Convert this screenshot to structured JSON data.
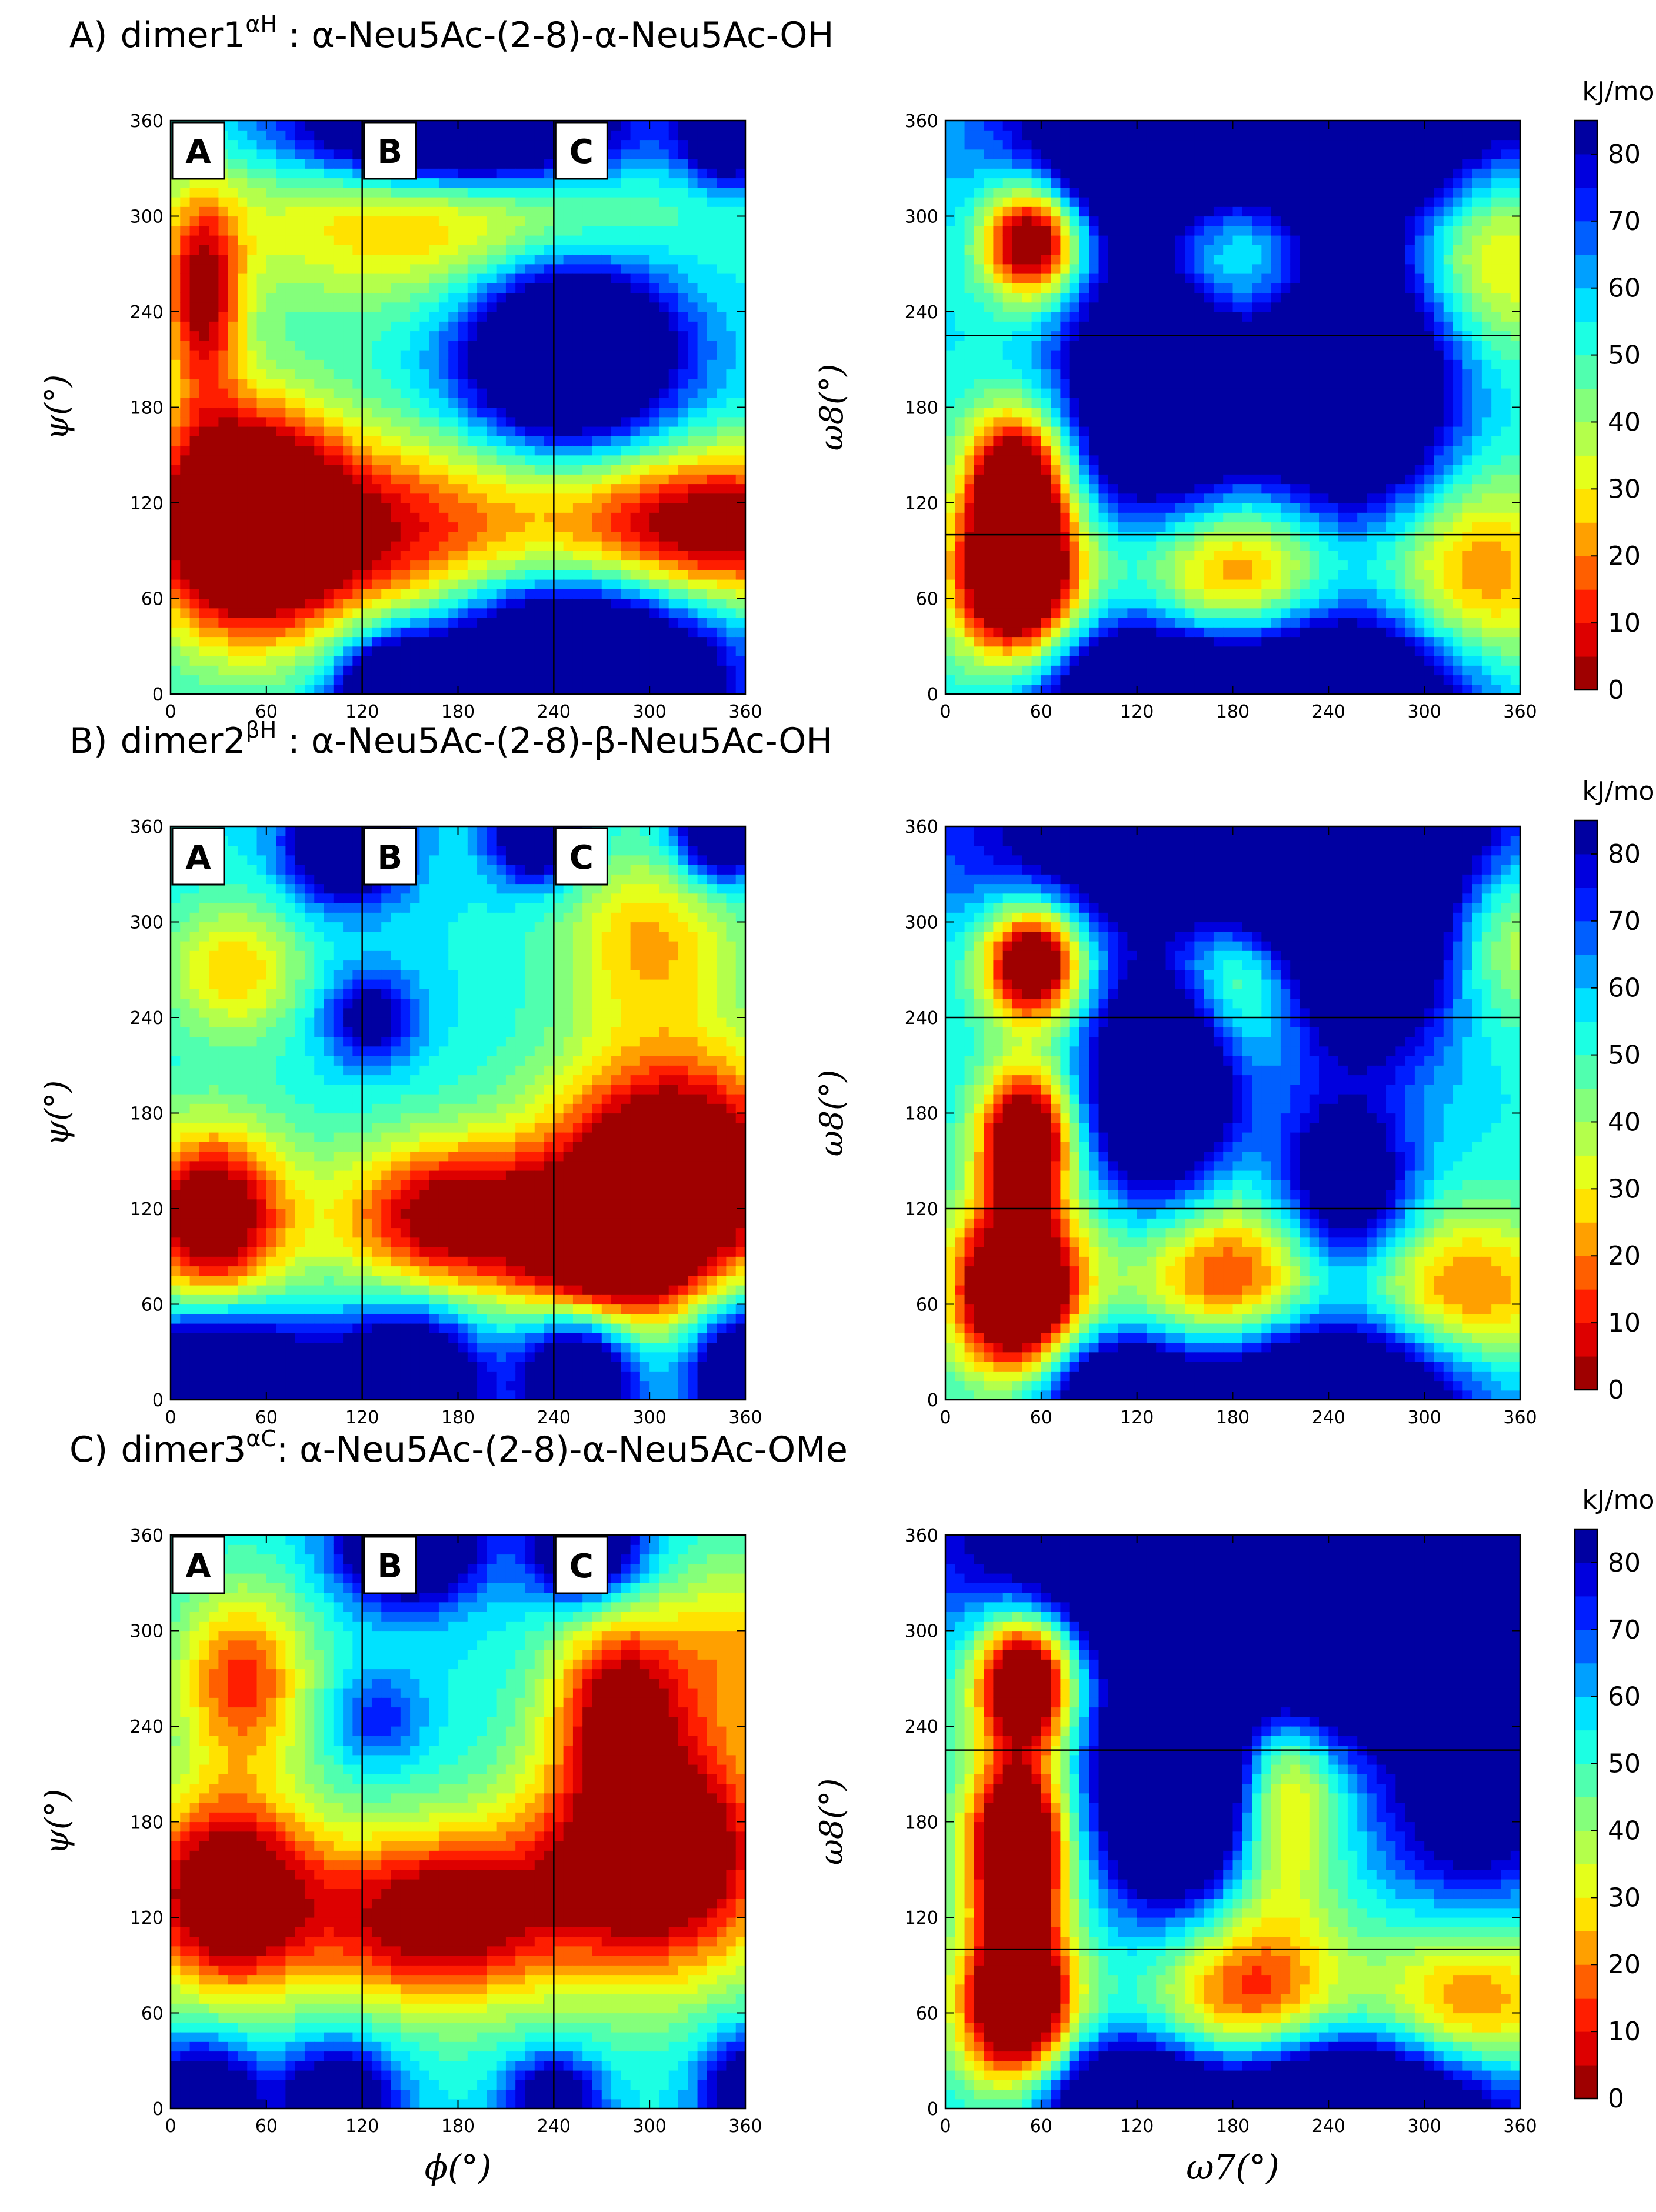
{
  "colorbar": {
    "unit": "kJ/mol",
    "min": 0,
    "max": 85,
    "levels": 17,
    "ticks": [
      0,
      10,
      20,
      30,
      40,
      50,
      60,
      70,
      80
    ]
  },
  "axes": {
    "phi_label": "ϕ(°)",
    "psi_label": "ψ(°)",
    "omega7_label": "ω7(°)",
    "omega8_label": "ω8(°)",
    "range": [
      0,
      360
    ],
    "ticks": [
      0,
      60,
      120,
      180,
      240,
      300,
      360
    ]
  },
  "region_labels": [
    "A",
    "B",
    "C"
  ],
  "panels": [
    {
      "label": "A)",
      "name": "dimer1",
      "superscript": "αH",
      "formula": " : α-Neu5Ac-(2-8)-α-Neu5Ac-OH",
      "phi_dividers": [
        120,
        240
      ],
      "omega8_dividers": [
        100,
        225
      ]
    },
    {
      "label": "B)",
      "name": "dimer2",
      "superscript": "βH",
      "formula": " : α-Neu5Ac-(2-8)-β-Neu5Ac-OH",
      "phi_dividers": [
        120,
        240
      ],
      "omega8_dividers": [
        120,
        240
      ]
    },
    {
      "label": "C)",
      "name": "dimer3",
      "superscript": "αC",
      "formula": ": α-Neu5Ac-(2-8)-α-Neu5Ac-OMe",
      "phi_dividers": [
        120,
        240
      ],
      "omega8_dividers": [
        100,
        225
      ]
    }
  ],
  "chart_data": [
    {
      "type": "heatmap",
      "panel": "A",
      "plot": "phi-psi",
      "xlabel": "",
      "ylabel": "ψ(°)",
      "xlim": [
        0,
        360
      ],
      "ylim": [
        0,
        360
      ],
      "zlim": [
        0,
        85
      ],
      "minima": [
        {
          "x": 45,
          "y": 110,
          "depth": 84,
          "sx": 42,
          "sy": 50
        },
        {
          "x": 20,
          "y": 250,
          "depth": 50,
          "sx": 18,
          "sy": 45
        },
        {
          "x": 140,
          "y": 100,
          "depth": 45,
          "sx": 70,
          "sy": 45
        },
        {
          "x": 340,
          "y": 105,
          "depth": 60,
          "sx": 70,
          "sy": 35
        },
        {
          "x": 160,
          "y": 300,
          "depth": 33,
          "sx": 100,
          "sy": 40
        }
      ],
      "barriers": [
        {
          "x": 250,
          "y": 215,
          "height": 80,
          "sx": 45,
          "sy": 40
        },
        {
          "x": 250,
          "y": 10,
          "height": 100,
          "sx": 60,
          "sy": 40
        },
        {
          "x": 180,
          "y": 355,
          "height": 85,
          "sx": 70,
          "sy": 25
        },
        {
          "x": 140,
          "y": 0,
          "height": 60,
          "sx": 25,
          "sy": 25
        },
        {
          "x": 350,
          "y": 350,
          "height": 55,
          "sx": 20,
          "sy": 20
        }
      ]
    },
    {
      "type": "heatmap",
      "panel": "A",
      "plot": "omega7-omega8",
      "xlabel": "",
      "ylabel": "ω8(°)",
      "xlim": [
        0,
        360
      ],
      "ylim": [
        0,
        360
      ],
      "zlim": [
        0,
        85
      ],
      "minima": [
        {
          "x": 45,
          "y": 75,
          "depth": 92,
          "sx": 28,
          "sy": 38
        },
        {
          "x": 45,
          "y": 140,
          "depth": 60,
          "sx": 22,
          "sy": 30
        },
        {
          "x": 55,
          "y": 285,
          "depth": 75,
          "sx": 22,
          "sy": 26
        },
        {
          "x": 180,
          "y": 70,
          "depth": 50,
          "sx": 45,
          "sy": 40
        },
        {
          "x": 330,
          "y": 70,
          "depth": 40,
          "sx": 45,
          "sy": 50
        },
        {
          "x": 180,
          "y": 280,
          "depth": 45,
          "sx": 40,
          "sy": 40
        },
        {
          "x": 340,
          "y": 290,
          "depth": 45,
          "sx": 45,
          "sy": 50
        }
      ],
      "barriers": [
        {
          "x": 135,
          "y": 195,
          "height": 75,
          "sx": 40,
          "sy": 60
        },
        {
          "x": 255,
          "y": 195,
          "height": 75,
          "sx": 45,
          "sy": 60
        },
        {
          "x": 240,
          "y": 360,
          "height": 80,
          "sx": 110,
          "sy": 55
        },
        {
          "x": 130,
          "y": 0,
          "height": 70,
          "sx": 50,
          "sy": 35
        },
        {
          "x": 250,
          "y": 0,
          "height": 75,
          "sx": 60,
          "sy": 40
        },
        {
          "x": 120,
          "y": 360,
          "height": 55,
          "sx": 40,
          "sy": 40
        }
      ]
    },
    {
      "type": "heatmap",
      "panel": "B",
      "plot": "phi-psi",
      "xlabel": "",
      "ylabel": "ψ(°)",
      "xlim": [
        0,
        360
      ],
      "ylim": [
        0,
        360
      ],
      "zlim": [
        0,
        85
      ],
      "minima": [
        {
          "x": 25,
          "y": 115,
          "depth": 65,
          "sx": 35,
          "sy": 40
        },
        {
          "x": 175,
          "y": 115,
          "depth": 58,
          "sx": 50,
          "sy": 35
        },
        {
          "x": 315,
          "y": 140,
          "depth": 80,
          "sx": 55,
          "sy": 55
        },
        {
          "x": 270,
          "y": 90,
          "depth": 45,
          "sx": 35,
          "sy": 30
        },
        {
          "x": 40,
          "y": 270,
          "depth": 30,
          "sx": 30,
          "sy": 30
        },
        {
          "x": 300,
          "y": 290,
          "depth": 30,
          "sx": 40,
          "sy": 40
        }
      ],
      "barriers": [
        {
          "x": 30,
          "y": 10,
          "height": 75,
          "sx": 45,
          "sy": 30
        },
        {
          "x": 150,
          "y": 10,
          "height": 70,
          "sx": 30,
          "sy": 30
        },
        {
          "x": 255,
          "y": 15,
          "height": 60,
          "sx": 25,
          "sy": 28
        },
        {
          "x": 360,
          "y": 20,
          "height": 60,
          "sx": 25,
          "sy": 30
        },
        {
          "x": 110,
          "y": 350,
          "height": 60,
          "sx": 25,
          "sy": 25
        },
        {
          "x": 230,
          "y": 355,
          "height": 55,
          "sx": 20,
          "sy": 20
        },
        {
          "x": 345,
          "y": 355,
          "height": 55,
          "sx": 20,
          "sy": 20
        },
        {
          "x": 125,
          "y": 240,
          "height": 35,
          "sx": 20,
          "sy": 20
        }
      ]
    },
    {
      "type": "heatmap",
      "panel": "B",
      "plot": "omega7-omega8",
      "xlabel": "",
      "ylabel": "ω8(°)",
      "xlim": [
        0,
        360
      ],
      "ylim": [
        0,
        360
      ],
      "zlim": [
        0,
        85
      ],
      "minima": [
        {
          "x": 45,
          "y": 70,
          "depth": 92,
          "sx": 28,
          "sy": 38
        },
        {
          "x": 50,
          "y": 165,
          "depth": 75,
          "sx": 20,
          "sy": 30
        },
        {
          "x": 55,
          "y": 275,
          "depth": 75,
          "sx": 22,
          "sy": 26
        },
        {
          "x": 180,
          "y": 70,
          "depth": 50,
          "sx": 45,
          "sy": 40
        },
        {
          "x": 320,
          "y": 60,
          "depth": 45,
          "sx": 50,
          "sy": 40
        },
        {
          "x": 190,
          "y": 270,
          "depth": 45,
          "sx": 35,
          "sy": 35
        },
        {
          "x": 340,
          "y": 300,
          "depth": 40,
          "sx": 45,
          "sy": 45
        }
      ],
      "barriers": [
        {
          "x": 135,
          "y": 200,
          "height": 75,
          "sx": 30,
          "sy": 50
        },
        {
          "x": 260,
          "y": 290,
          "height": 80,
          "sx": 50,
          "sy": 50
        },
        {
          "x": 200,
          "y": 360,
          "height": 80,
          "sx": 110,
          "sy": 45
        },
        {
          "x": 240,
          "y": 10,
          "height": 75,
          "sx": 70,
          "sy": 35
        },
        {
          "x": 110,
          "y": 5,
          "height": 55,
          "sx": 35,
          "sy": 25
        },
        {
          "x": 250,
          "y": 130,
          "height": 50,
          "sx": 30,
          "sy": 40
        }
      ]
    },
    {
      "type": "heatmap",
      "panel": "C",
      "plot": "phi-psi",
      "xlabel": "ϕ(°)",
      "ylabel": "ψ(°)",
      "xlim": [
        0,
        360
      ],
      "ylim": [
        0,
        360
      ],
      "zlim": [
        0,
        85
      ],
      "minima": [
        {
          "x": 35,
          "y": 135,
          "depth": 68,
          "sx": 40,
          "sy": 45
        },
        {
          "x": 165,
          "y": 120,
          "depth": 60,
          "sx": 55,
          "sy": 40
        },
        {
          "x": 305,
          "y": 160,
          "depth": 72,
          "sx": 55,
          "sy": 55
        },
        {
          "x": 45,
          "y": 270,
          "depth": 42,
          "sx": 30,
          "sy": 40
        },
        {
          "x": 280,
          "y": 260,
          "depth": 45,
          "sx": 30,
          "sy": 40
        },
        {
          "x": 360,
          "y": 290,
          "depth": 28,
          "sx": 40,
          "sy": 40
        }
      ],
      "barriers": [
        {
          "x": 20,
          "y": 5,
          "height": 55,
          "sx": 25,
          "sy": 25
        },
        {
          "x": 150,
          "y": 355,
          "height": 65,
          "sx": 30,
          "sy": 25
        },
        {
          "x": 260,
          "y": 355,
          "height": 55,
          "sx": 25,
          "sy": 25
        },
        {
          "x": 105,
          "y": 5,
          "height": 50,
          "sx": 25,
          "sy": 25
        },
        {
          "x": 240,
          "y": 5,
          "height": 45,
          "sx": 20,
          "sy": 20
        },
        {
          "x": 360,
          "y": 10,
          "height": 45,
          "sx": 20,
          "sy": 25
        },
        {
          "x": 130,
          "y": 245,
          "height": 20,
          "sx": 20,
          "sy": 20
        }
      ]
    },
    {
      "type": "heatmap",
      "panel": "C",
      "plot": "omega7-omega8",
      "xlabel": "ω7(°)",
      "ylabel": "ω8(°)",
      "xlim": [
        0,
        360
      ],
      "ylim": [
        0,
        360
      ],
      "zlim": [
        0,
        85
      ],
      "minima": [
        {
          "x": 45,
          "y": 65,
          "depth": 85,
          "sx": 25,
          "sy": 35
        },
        {
          "x": 45,
          "y": 165,
          "depth": 85,
          "sx": 22,
          "sy": 40
        },
        {
          "x": 50,
          "y": 270,
          "depth": 80,
          "sx": 22,
          "sy": 30
        },
        {
          "x": 190,
          "y": 70,
          "depth": 45,
          "sx": 40,
          "sy": 40
        },
        {
          "x": 330,
          "y": 60,
          "depth": 40,
          "sx": 45,
          "sy": 40
        },
        {
          "x": 210,
          "y": 200,
          "depth": 40,
          "sx": 25,
          "sy": 50
        }
      ],
      "barriers": [
        {
          "x": 145,
          "y": 200,
          "height": 80,
          "sx": 35,
          "sy": 50
        },
        {
          "x": 250,
          "y": 300,
          "height": 80,
          "sx": 80,
          "sy": 45
        },
        {
          "x": 180,
          "y": 360,
          "height": 80,
          "sx": 110,
          "sy": 45
        },
        {
          "x": 250,
          "y": 5,
          "height": 75,
          "sx": 80,
          "sy": 30
        },
        {
          "x": 110,
          "y": 5,
          "height": 55,
          "sx": 35,
          "sy": 25
        },
        {
          "x": 330,
          "y": 190,
          "height": 40,
          "sx": 40,
          "sy": 45
        }
      ]
    }
  ]
}
